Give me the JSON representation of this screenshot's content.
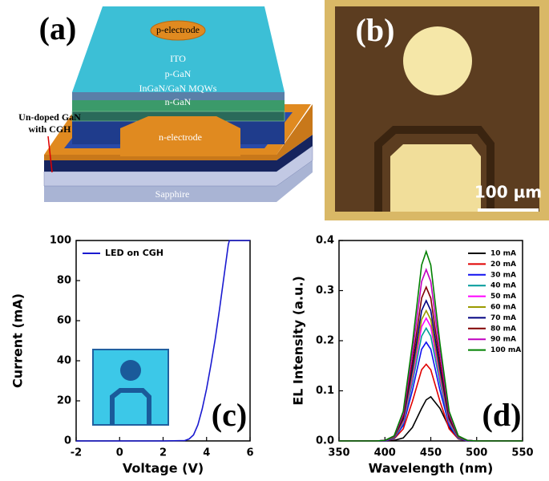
{
  "panel_a": {
    "label": "(a)",
    "p_electrode": "p-electrode",
    "ito": "ITO",
    "p_gan": "p-GaN",
    "mqws": "InGaN/GaN MQWs",
    "n_gan": "n-GaN",
    "n_electrode": "n-electrode",
    "annotation": [
      "Un-doped GaN",
      "with CGH"
    ],
    "sapphire": "Sapphire"
  },
  "panel_b": {
    "label": "(b)",
    "scale_bar": "100 µm"
  },
  "chart_data": [
    {
      "type": "line",
      "panel_label": "(c)",
      "xlabel": "Voltage (V)",
      "ylabel": "Current (mA)",
      "x": [
        -2,
        0,
        2,
        3,
        3.2,
        3.4,
        3.6,
        3.8,
        4,
        4.2,
        4.4,
        4.6,
        4.8,
        5,
        5.05,
        6
      ],
      "series": [
        {
          "name": "LED on CGH",
          "color": "#1a1ad0",
          "values": [
            0,
            0,
            0,
            0.2,
            1,
            3,
            8,
            16,
            26,
            38,
            51,
            66,
            82,
            98,
            100,
            100
          ]
        }
      ],
      "xlim": [
        -2,
        6
      ],
      "xticks": [
        -2,
        0,
        2,
        4,
        6
      ],
      "ylim": [
        0,
        100
      ],
      "yticks": [
        0,
        20,
        40,
        60,
        80,
        100
      ],
      "legend": "upper left"
    },
    {
      "type": "line",
      "panel_label": "(d)",
      "xlabel": "Wavelength (nm)",
      "ylabel": "EL Intensity (a.u.)",
      "x": [
        350,
        370,
        390,
        400,
        410,
        420,
        430,
        440,
        445,
        450,
        460,
        470,
        480,
        490,
        500,
        510,
        530,
        550
      ],
      "series": [
        {
          "name": "10 mA",
          "color": "#000000",
          "values": [
            0,
            0,
            0,
            0,
            0.001,
            0.006,
            0.027,
            0.065,
            0.082,
            0.088,
            0.065,
            0.027,
            0.006,
            0.001,
            0,
            0,
            0,
            0
          ]
        },
        {
          "name": "20 mA",
          "color": "#e00000",
          "values": [
            0,
            0,
            0,
            0,
            0.004,
            0.024,
            0.079,
            0.142,
            0.153,
            0.142,
            0.079,
            0.024,
            0.004,
            0,
            0,
            0,
            0,
            0
          ]
        },
        {
          "name": "30 mA",
          "color": "#1010f0",
          "values": [
            0,
            0,
            0,
            0,
            0.005,
            0.031,
            0.101,
            0.183,
            0.197,
            0.183,
            0.101,
            0.031,
            0.005,
            0,
            0,
            0,
            0,
            0
          ]
        },
        {
          "name": "40 mA",
          "color": "#009a9a",
          "values": [
            0,
            0,
            0,
            0.001,
            0.006,
            0.035,
            0.116,
            0.209,
            0.225,
            0.209,
            0.116,
            0.035,
            0.006,
            0.001,
            0,
            0,
            0,
            0
          ]
        },
        {
          "name": "50 mA",
          "color": "#ff00ff",
          "values": [
            0,
            0,
            0,
            0.001,
            0.007,
            0.038,
            0.126,
            0.228,
            0.245,
            0.228,
            0.126,
            0.038,
            0.007,
            0.001,
            0,
            0,
            0,
            0
          ]
        },
        {
          "name": "60 mA",
          "color": "#9a9a00",
          "values": [
            0,
            0,
            0,
            0.001,
            0.007,
            0.041,
            0.134,
            0.242,
            0.26,
            0.242,
            0.134,
            0.041,
            0.007,
            0.001,
            0,
            0,
            0,
            0
          ]
        },
        {
          "name": "70 mA",
          "color": "#000080",
          "values": [
            0,
            0,
            0,
            0.001,
            0.008,
            0.044,
            0.144,
            0.26,
            0.28,
            0.26,
            0.144,
            0.044,
            0.008,
            0.001,
            0,
            0,
            0,
            0
          ]
        },
        {
          "name": "80 mA",
          "color": "#800000",
          "values": [
            0,
            0,
            0,
            0.001,
            0.008,
            0.048,
            0.158,
            0.285,
            0.307,
            0.285,
            0.158,
            0.048,
            0.008,
            0.001,
            0,
            0,
            0,
            0
          ]
        },
        {
          "name": "90 mA",
          "color": "#c000c0",
          "values": [
            0,
            0,
            0,
            0.001,
            0.009,
            0.054,
            0.176,
            0.318,
            0.342,
            0.318,
            0.176,
            0.054,
            0.009,
            0.001,
            0,
            0,
            0,
            0
          ]
        },
        {
          "name": "100 mA",
          "color": "#008000",
          "values": [
            0,
            0,
            0,
            0.001,
            0.01,
            0.059,
            0.194,
            0.351,
            0.378,
            0.351,
            0.194,
            0.059,
            0.01,
            0.001,
            0,
            0,
            0,
            0
          ]
        }
      ],
      "xlim": [
        350,
        550
      ],
      "xticks": [
        350,
        400,
        450,
        500,
        550
      ],
      "ylim": [
        0,
        0.4
      ],
      "yticks": [
        {
          "value": 0,
          "label": "0.0"
        },
        0.1,
        0.2,
        0.3,
        0.4
      ],
      "legend": "upper right"
    }
  ]
}
